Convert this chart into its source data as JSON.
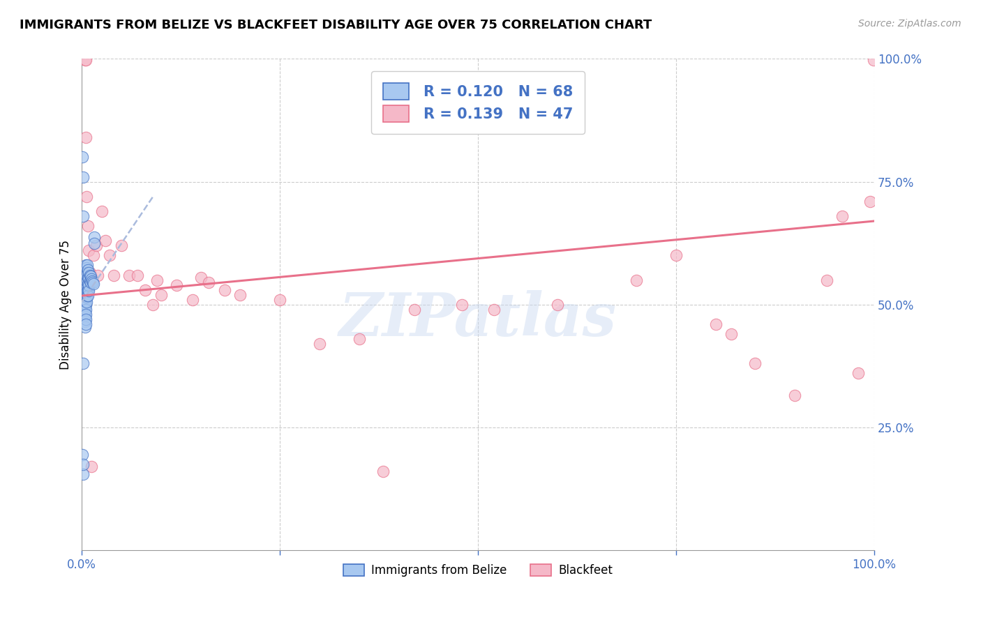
{
  "title": "IMMIGRANTS FROM BELIZE VS BLACKFEET DISABILITY AGE OVER 75 CORRELATION CHART",
  "source": "Source: ZipAtlas.com",
  "ylabel": "Disability Age Over 75",
  "xlabel_legend1": "Immigrants from Belize",
  "xlabel_legend2": "Blackfeet",
  "r_belize": 0.12,
  "n_belize": 68,
  "r_blackfeet": 0.139,
  "n_blackfeet": 47,
  "color_belize": "#a8c8f0",
  "color_blackfeet": "#f5b8c8",
  "line_color_belize": "#4472c4",
  "line_color_blackfeet": "#e8708a",
  "watermark": "ZIPatlas",
  "xmin": 0.0,
  "xmax": 1.0,
  "ymin": 0.0,
  "ymax": 1.0,
  "belize_x": [
    0.001,
    0.002,
    0.002,
    0.002,
    0.002,
    0.003,
    0.003,
    0.003,
    0.003,
    0.003,
    0.003,
    0.003,
    0.004,
    0.004,
    0.004,
    0.004,
    0.004,
    0.004,
    0.004,
    0.004,
    0.004,
    0.004,
    0.004,
    0.005,
    0.005,
    0.005,
    0.005,
    0.005,
    0.005,
    0.005,
    0.005,
    0.005,
    0.005,
    0.005,
    0.006,
    0.006,
    0.006,
    0.006,
    0.006,
    0.006,
    0.006,
    0.007,
    0.007,
    0.007,
    0.007,
    0.007,
    0.007,
    0.008,
    0.008,
    0.008,
    0.008,
    0.008,
    0.009,
    0.009,
    0.009,
    0.009,
    0.01,
    0.01,
    0.011,
    0.011,
    0.012,
    0.013,
    0.014,
    0.015,
    0.016,
    0.016,
    0.001,
    0.002
  ],
  "belize_y": [
    0.195,
    0.155,
    0.38,
    0.76,
    0.68,
    0.56,
    0.545,
    0.53,
    0.52,
    0.51,
    0.5,
    0.485,
    0.57,
    0.555,
    0.54,
    0.525,
    0.515,
    0.505,
    0.495,
    0.485,
    0.475,
    0.465,
    0.455,
    0.58,
    0.565,
    0.55,
    0.535,
    0.52,
    0.51,
    0.5,
    0.49,
    0.48,
    0.47,
    0.46,
    0.575,
    0.56,
    0.545,
    0.535,
    0.525,
    0.515,
    0.505,
    0.58,
    0.565,
    0.55,
    0.538,
    0.528,
    0.518,
    0.57,
    0.555,
    0.542,
    0.53,
    0.518,
    0.565,
    0.553,
    0.54,
    0.528,
    0.56,
    0.548,
    0.558,
    0.545,
    0.552,
    0.548,
    0.545,
    0.542,
    0.638,
    0.625,
    0.8,
    0.175
  ],
  "blackfeet_x": [
    0.004,
    0.005,
    0.005,
    0.006,
    0.008,
    0.009,
    0.01,
    0.012,
    0.015,
    0.018,
    0.02,
    0.025,
    0.03,
    0.035,
    0.04,
    0.05,
    0.06,
    0.07,
    0.08,
    0.09,
    0.095,
    0.1,
    0.12,
    0.14,
    0.15,
    0.16,
    0.18,
    0.2,
    0.25,
    0.3,
    0.35,
    0.38,
    0.42,
    0.48,
    0.52,
    0.6,
    0.7,
    0.75,
    0.8,
    0.82,
    0.85,
    0.9,
    0.94,
    0.96,
    0.98,
    0.995,
    0.999
  ],
  "blackfeet_y": [
    0.998,
    0.998,
    0.84,
    0.72,
    0.66,
    0.61,
    0.565,
    0.17,
    0.6,
    0.62,
    0.56,
    0.69,
    0.63,
    0.6,
    0.56,
    0.62,
    0.56,
    0.56,
    0.53,
    0.5,
    0.55,
    0.52,
    0.54,
    0.51,
    0.555,
    0.545,
    0.53,
    0.52,
    0.51,
    0.42,
    0.43,
    0.16,
    0.49,
    0.5,
    0.49,
    0.5,
    0.55,
    0.6,
    0.46,
    0.44,
    0.38,
    0.315,
    0.55,
    0.68,
    0.36,
    0.71,
    0.998
  ],
  "belize_trend_x": [
    0.0,
    0.09
  ],
  "belize_trend_y": [
    0.505,
    0.72
  ],
  "blackfeet_trend_x": [
    0.0,
    1.0
  ],
  "blackfeet_trend_y": [
    0.518,
    0.67
  ]
}
